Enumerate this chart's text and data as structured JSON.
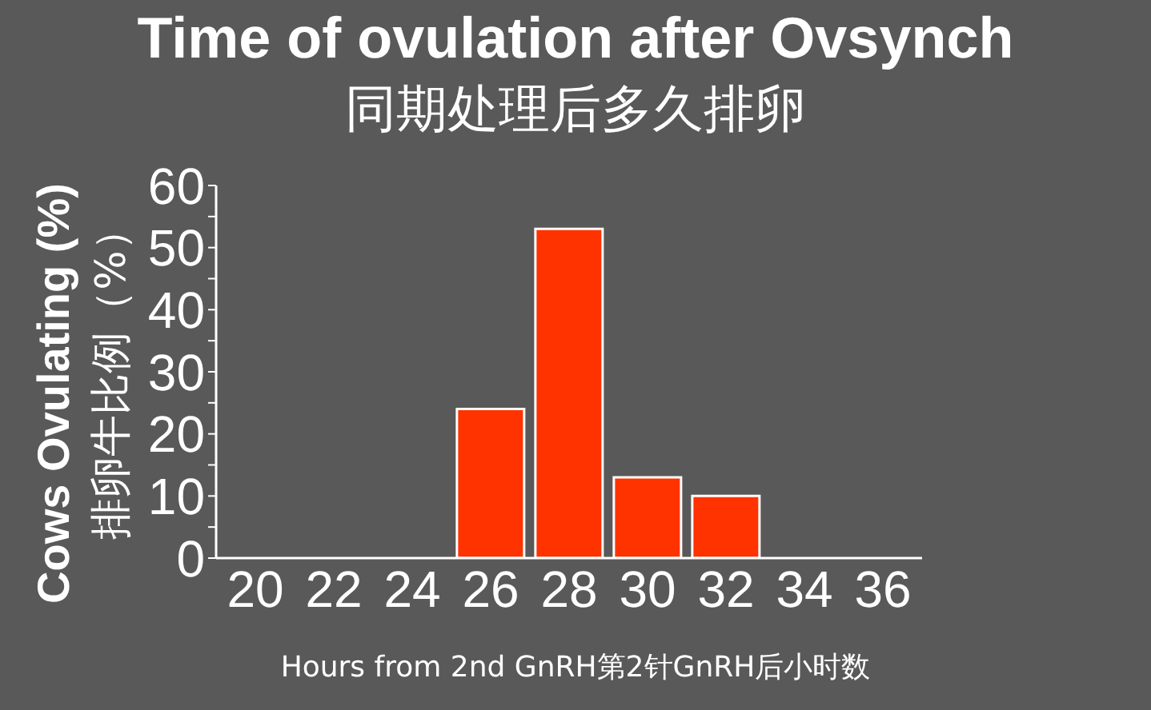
{
  "chart_data": {
    "type": "bar",
    "title": "Time of ovulation after Ovsynch",
    "subtitle": "同期处理后多久排卵",
    "xlabel": "Hours from 2nd GnRH第2针GnRH后小时数",
    "ylabel": "Cows Ovulating (%)",
    "y2label": "排卵牛比例（%）",
    "categories": [
      "20",
      "22",
      "24",
      "26",
      "28",
      "30",
      "32",
      "34",
      "36"
    ],
    "values": [
      0,
      0,
      0,
      24,
      53,
      13,
      10,
      0,
      0
    ],
    "color": "#ff3300",
    "ylim": [
      0,
      60
    ],
    "yticks": [
      0,
      {
        "value": 5,
        "label": null
      },
      10,
      {
        "value": 15,
        "label": null
      },
      20,
      {
        "value": 25,
        "label": null
      },
      30,
      {
        "value": 35,
        "label": null
      },
      40,
      {
        "value": 45,
        "label": null
      },
      50,
      {
        "value": 55,
        "label": null
      },
      60
    ],
    "grid": false,
    "legend": false
  }
}
